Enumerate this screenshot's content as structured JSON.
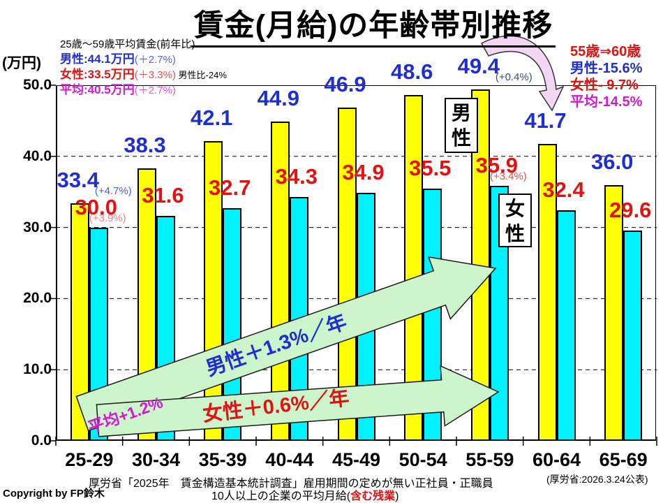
{
  "title": "賃金(月給)の年齢帯別推移",
  "y_axis": {
    "unit": "(万円)",
    "ticks": [
      "50.0",
      "40.0",
      "30.0",
      "20.0",
      "10.0",
      "0.0"
    ]
  },
  "chart_data": {
    "type": "bar",
    "title": "賃金(月給)の年齢帯別推移",
    "unit": "万円",
    "categories": [
      "25-29",
      "30-34",
      "35-39",
      "40-44",
      "45-49",
      "50-54",
      "55-59",
      "60-64",
      "65-69"
    ],
    "series": [
      {
        "name": "男性",
        "bar_color": "#ffff00",
        "label_color": "#1f2fcf",
        "values": [
          33.4,
          38.3,
          42.1,
          44.9,
          46.9,
          48.6,
          49.4,
          41.7,
          36.0
        ]
      },
      {
        "name": "女性",
        "bar_color": "#00f2ff",
        "label_color": "#e01212",
        "values": [
          30.0,
          31.6,
          32.7,
          34.3,
          34.9,
          35.5,
          35.9,
          32.4,
          29.6
        ]
      }
    ],
    "ylim": [
      0,
      50
    ],
    "ytick_step": 10,
    "grid": "dashed-horizontal",
    "pct_annotations": [
      {
        "series": 0,
        "group": 0,
        "text": "(+4.7%)",
        "color": "#4a5fd8"
      },
      {
        "series": 1,
        "group": 0,
        "text": "(+3.9%)",
        "color": "#e88383"
      },
      {
        "series": 0,
        "group": 6,
        "text": "(+0.4%)",
        "color": "#3a4a7a"
      },
      {
        "series": 1,
        "group": 6,
        "text": "(+3.4%)",
        "color": "#e05050"
      }
    ]
  },
  "info_box": {
    "heading": "25歳～59歳平均賃金(前年比)",
    "rows": [
      {
        "main": "男性:44.1万円",
        "paren": "(＋2.7%)",
        "extra": ""
      },
      {
        "main": "女性:33.5万円",
        "paren": "(＋3.3%)",
        "extra": " 男性比-24%"
      },
      {
        "main": "平均:40.5万円",
        "paren": "(＋2.7%)",
        "extra": ""
      }
    ]
  },
  "drop_stats": {
    "heading": "55歳⇒60歳",
    "rows": [
      {
        "text": "男性-15.6%"
      },
      {
        "text": "女性- 9.7%"
      },
      {
        "text": "平均-14.5%"
      }
    ]
  },
  "series_tags": {
    "male": "男性",
    "female": "女性"
  },
  "trend_arrows": {
    "male": "男性＋1.3%／年",
    "female": "女性＋0.6%／年",
    "average": "平均+1.2%",
    "arrow_color": "#ccf5cc"
  },
  "footer": {
    "line1": "厚労省「2025年　賃金構造基本統計調査」雇用期間の定めが無い正社員・正職員",
    "line2_prefix": "10人以上の企業の平均月給(",
    "line2_highlight": "含む残業",
    "line2_suffix": ")",
    "publish_note": "(厚労省:2026.3.24公表)",
    "copyright": "Copyright by FP鈴木"
  },
  "colors": {
    "male_text": "#1f2fcf",
    "female_text": "#e01212",
    "average_text": "#d517d5",
    "male_bar": "#ffff00",
    "female_bar": "#00f2ff",
    "trend_arrow_fill": "#ccf5cc",
    "drop_arrow_fill": "#f3d6f3"
  }
}
